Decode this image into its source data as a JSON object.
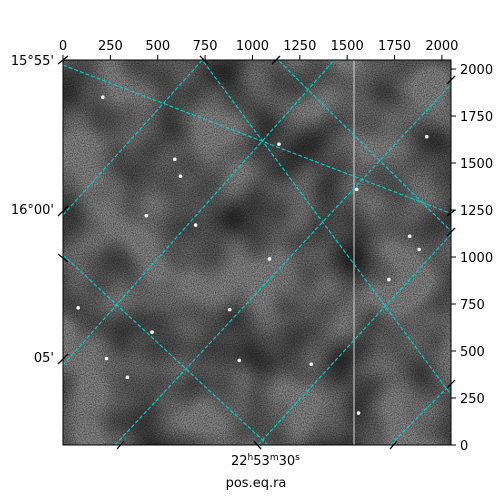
{
  "chart_data": {
    "type": "heatmap",
    "description_kind": "grayscale sky image with celestial coordinate overlay",
    "xlabel": "pos.eq.ra",
    "ylabel": "",
    "xlim": [
      0,
      2048
    ],
    "ylim": [
      0,
      2048
    ],
    "x_ticks": [
      0,
      250,
      500,
      750,
      1000,
      1250,
      1500,
      1750,
      2000
    ],
    "y_ticks": [
      0,
      250,
      500,
      750,
      1000,
      1250,
      1500,
      1750,
      2000
    ],
    "x_tick_labels": [
      "0",
      "250",
      "500",
      "750",
      "1000",
      "1250",
      "1500",
      "1750",
      "2000"
    ],
    "y_tick_labels": [
      "0",
      "250",
      "500",
      "750",
      "1000",
      "1250",
      "1500",
      "1750",
      "2000"
    ],
    "dec_labels": [
      "15°55'",
      "16°00'",
      "05'"
    ],
    "ra_label_main": "22",
    "ra_label_h": "h",
    "ra_label_min": "53",
    "ra_label_m": "m",
    "ra_label_sec": "30",
    "ra_label_s": "s",
    "grid": true,
    "grid_color": "#00d2d2",
    "colormap": "gray",
    "stars": [
      {
        "x": 210,
        "y": 1850
      },
      {
        "x": 590,
        "y": 1520
      },
      {
        "x": 620,
        "y": 1430
      },
      {
        "x": 440,
        "y": 1220
      },
      {
        "x": 700,
        "y": 1170
      },
      {
        "x": 1090,
        "y": 990
      },
      {
        "x": 1550,
        "y": 1360
      },
      {
        "x": 1720,
        "y": 880
      },
      {
        "x": 1830,
        "y": 1110
      },
      {
        "x": 1920,
        "y": 1640
      },
      {
        "x": 470,
        "y": 600
      },
      {
        "x": 230,
        "y": 460
      },
      {
        "x": 340,
        "y": 360
      },
      {
        "x": 930,
        "y": 450
      },
      {
        "x": 1310,
        "y": 430
      },
      {
        "x": 1560,
        "y": 170
      },
      {
        "x": 80,
        "y": 730
      },
      {
        "x": 1880,
        "y": 1040
      },
      {
        "x": 880,
        "y": 720
      },
      {
        "x": 1140,
        "y": 1600
      }
    ]
  }
}
